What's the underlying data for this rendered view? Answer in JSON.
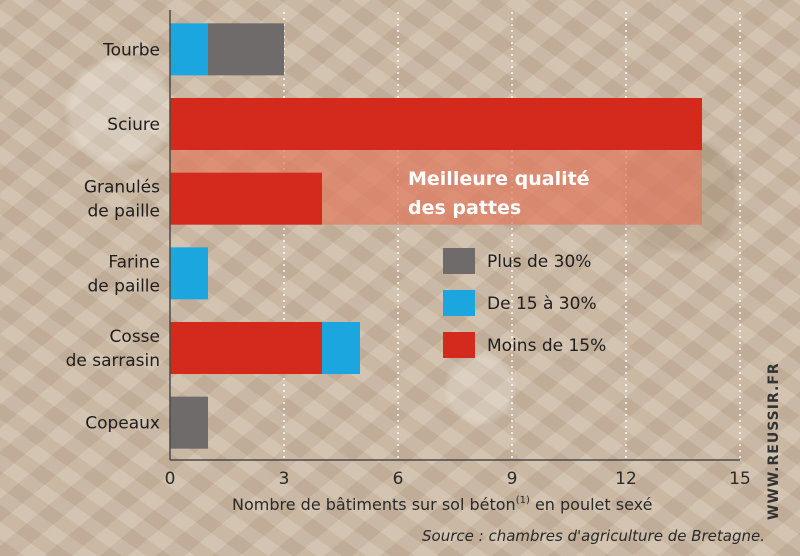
{
  "chart_data": {
    "type": "bar",
    "orientation": "horizontal",
    "stacked": true,
    "categories": [
      "Tourbe",
      "Sciure",
      "Granulés\nde paille",
      "Farine\nde paille",
      "Cosse\nde sarrasin",
      "Copeaux"
    ],
    "series": [
      {
        "name": "Moins de 15%",
        "color": "#d42a1e",
        "values": [
          0,
          14,
          4,
          0,
          4,
          0
        ]
      },
      {
        "name": "De 15 à 30%",
        "color": "#1ba6e0",
        "values": [
          1,
          0,
          0,
          1,
          1,
          0
        ]
      },
      {
        "name": "Plus de 30%",
        "color": "#6e6b6a",
        "values": [
          2,
          0,
          0,
          0,
          0,
          1
        ]
      }
    ],
    "xlim": [
      0,
      15
    ],
    "xticks": [
      0,
      3,
      6,
      9,
      12,
      15
    ],
    "xlabel": "Nombre de bâtiments sur sol béton",
    "xlabel_superscript": "(1)",
    "xlabel_suffix": " en poulet sexé",
    "grid": "vertical dotted",
    "legend_position": "right-middle",
    "highlight": {
      "label_line1": "Meilleure qualité",
      "label_line2": "des pattes",
      "color": "#e07a5f",
      "covers_categories": [
        "Sciure",
        "Granulés\nde paille"
      ]
    },
    "source": "Source : chambres d'agriculture de Bretagne.",
    "credit": "WWW.REUSSIR.FR"
  }
}
